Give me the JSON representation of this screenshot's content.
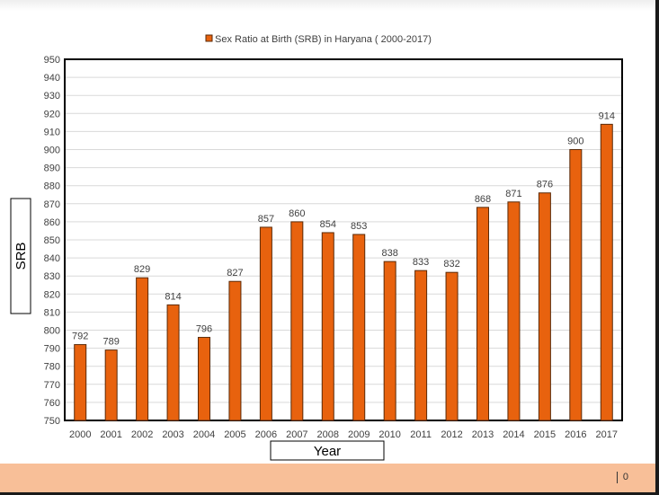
{
  "chart_data": {
    "type": "bar",
    "title": "Sex Ratio at Birth (SRB) in Haryana ( 2000-2017)",
    "legend_placement": "top",
    "series": [
      {
        "name": "Sex Ratio at Birth (SRB) in Haryana ( 2000-2017)",
        "values": [
          792,
          789,
          829,
          814,
          796,
          827,
          857,
          860,
          854,
          853,
          838,
          833,
          832,
          868,
          871,
          876,
          900,
          914
        ]
      }
    ],
    "categories": [
      "2000",
      "2001",
      "2002",
      "2003",
      "2004",
      "2005",
      "2006",
      "2007",
      "2008",
      "2009",
      "2010",
      "2011",
      "2012",
      "2013",
      "2014",
      "2015",
      "2016",
      "2017"
    ],
    "xlabel": "Year",
    "ylabel": "SRB",
    "ylim": [
      750,
      950
    ],
    "y_tick_step": 10,
    "grid": true,
    "bar_color": "#e8620e",
    "bar_edge_color": "#5a2a08"
  },
  "footer": {
    "page_number": "0"
  }
}
